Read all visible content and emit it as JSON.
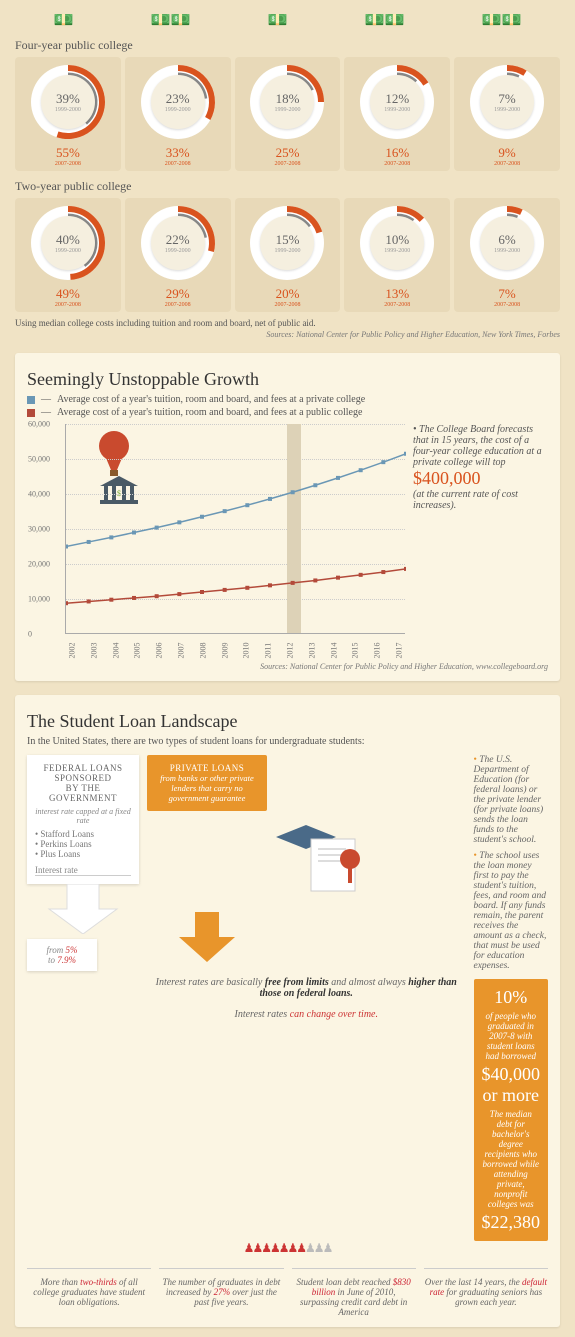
{
  "icons_row_count": 5,
  "gauges": {
    "four_year": {
      "label": "Four-year public college",
      "cells": [
        {
          "top_pct": "39%",
          "top_yr": "1999-2000",
          "bot_pct": "55%",
          "bot_yr": "2007-2008",
          "gray_arc": 140,
          "orange_arc": 198
        },
        {
          "top_pct": "23%",
          "top_yr": "1999-2000",
          "bot_pct": "33%",
          "bot_yr": "2007-2008",
          "gray_arc": 83,
          "orange_arc": 119
        },
        {
          "top_pct": "18%",
          "top_yr": "1999-2000",
          "bot_pct": "25%",
          "bot_yr": "2007-2008",
          "gray_arc": 65,
          "orange_arc": 90
        },
        {
          "top_pct": "12%",
          "top_yr": "1999-2000",
          "bot_pct": "16%",
          "bot_yr": "2007-2008",
          "gray_arc": 43,
          "orange_arc": 58
        },
        {
          "top_pct": "7%",
          "top_yr": "1999-2000",
          "bot_pct": "9%",
          "bot_yr": "2007-2008",
          "gray_arc": 25,
          "orange_arc": 32
        }
      ]
    },
    "two_year": {
      "label": "Two-year public college",
      "cells": [
        {
          "top_pct": "40%",
          "top_yr": "1999-2000",
          "bot_pct": "49%",
          "bot_yr": "2007-2008",
          "gray_arc": 144,
          "orange_arc": 176
        },
        {
          "top_pct": "22%",
          "top_yr": "1999-2000",
          "bot_pct": "29%",
          "bot_yr": "2007-2008",
          "gray_arc": 79,
          "orange_arc": 104
        },
        {
          "top_pct": "15%",
          "top_yr": "1999-2000",
          "bot_pct": "20%",
          "bot_yr": "2007-2008",
          "gray_arc": 54,
          "orange_arc": 72
        },
        {
          "top_pct": "10%",
          "top_yr": "1999-2000",
          "bot_pct": "13%",
          "bot_yr": "2007-2008",
          "gray_arc": 36,
          "orange_arc": 47
        },
        {
          "top_pct": "6%",
          "top_yr": "1999-2000",
          "bot_pct": "7%",
          "bot_yr": "2007-2008",
          "gray_arc": 22,
          "orange_arc": 25
        }
      ]
    },
    "footnote": "Using median college costs including tuition and room and board, net of public aid.",
    "sources": "Sources:  National Center for Public Policy and Higher Education, New York Times, Forbes"
  },
  "growth": {
    "title": "Seemingly Unstoppable Growth",
    "legend_private": "Average cost of a year's tuition, room and board, and fees at a private college",
    "legend_public": "Average cost of a year's tuition, room and board, and fees at a public college",
    "private_color": "#6a97b5",
    "public_color": "#b34a3a",
    "y_ticks": [
      0,
      10000,
      20000,
      30000,
      40000,
      50000,
      60000
    ],
    "y_labels": [
      "0",
      "10,000",
      "20,000",
      "30,000",
      "40,000",
      "50,000",
      "60,000"
    ],
    "x_labels": [
      "2002",
      "2003",
      "2004",
      "2005",
      "2006",
      "2007",
      "2008",
      "2009",
      "2010",
      "2011",
      "2012",
      "2013",
      "2014",
      "2015",
      "2016",
      "2017"
    ],
    "highlight_year": "2012",
    "series_private": [
      25000,
      26300,
      27600,
      29000,
      30400,
      31900,
      33500,
      35100,
      36800,
      38600,
      40500,
      42500,
      44600,
      46800,
      49100,
      51500
    ],
    "series_public": [
      8800,
      9300,
      9800,
      10300,
      10800,
      11400,
      12000,
      12600,
      13200,
      13900,
      14600,
      15300,
      16100,
      16900,
      17700,
      18600
    ],
    "side_text_1": "The College Board forecasts that in 15 years, the cost of a four-year college education at a private college will top",
    "side_text_big": "$400,000",
    "side_text_2": "(at the current rate of cost increases).",
    "sources": "Sources:  National Center for Public Policy and Higher Education, www.collegeboard.org"
  },
  "loans": {
    "title": "The Student Loan Landscape",
    "intro": "In the United States, there are two types of student loans for undergraduate students:",
    "federal": {
      "head1": "FEDERAL LOANS",
      "head2": "SPONSORED",
      "head3": "BY THE  GOVERNMENT",
      "sub": "interest rate capped at a fixed rate",
      "items": [
        "Stafford Loans",
        "Perkins Loans",
        "Plus Loans"
      ],
      "ir_label": "Interest rate"
    },
    "private": {
      "head": "PRIVATE LOANS",
      "body": "from banks or other private lenders that carry no government guarantee"
    },
    "bullets": [
      "The U.S. Department of Education (for federal loans) or the private lender (for private loans) sends the loan funds to the student's school.",
      "The school uses the loan money first to pay the student's tuition, fees, and room and board. If any funds remain, the parent receives the amount as a check, that must be used for education expenses."
    ],
    "orange_box": {
      "line1_big": "10%",
      "line1_rest": "of people who graduated in 2007-8 with student loans had borrowed",
      "line2_big": "$40,000 or more",
      "line3": "The median debt for bachelor's degree recipients who borrowed while attending private, nonprofit colleges was",
      "line4_big": "$22,380"
    },
    "pct_box": {
      "pre": "from ",
      "from": "5%",
      "mid": " to ",
      "to": "7.9%"
    },
    "mid_lines": [
      "Interest rates are basically <b>free from limits</b> and almost always <b>higher than those on federal loans.</b>",
      "Interest rates <span class='red'>can change over time.</span>"
    ],
    "people_on": 7,
    "people_total": 10,
    "bottom": [
      {
        "t": "More than <span class='hl'>two-thirds</span> of all college graduates have student loan obligations."
      },
      {
        "t": "The number of graduates in debt increased by <span class='hl'>27%</span> over just the past five years."
      },
      {
        "t": "Student loan debt reached <span class='hl'>$830 billion</span> in June of 2010, surpassing credit card debt in America"
      },
      {
        "t": "Over the last 14 years, the <span class='hl'>default rate</span> for graduating seniors has grown each year."
      }
    ]
  },
  "colors": {
    "orange": "#d9531e",
    "gray": "#888",
    "bg": "#f0e3c5"
  }
}
